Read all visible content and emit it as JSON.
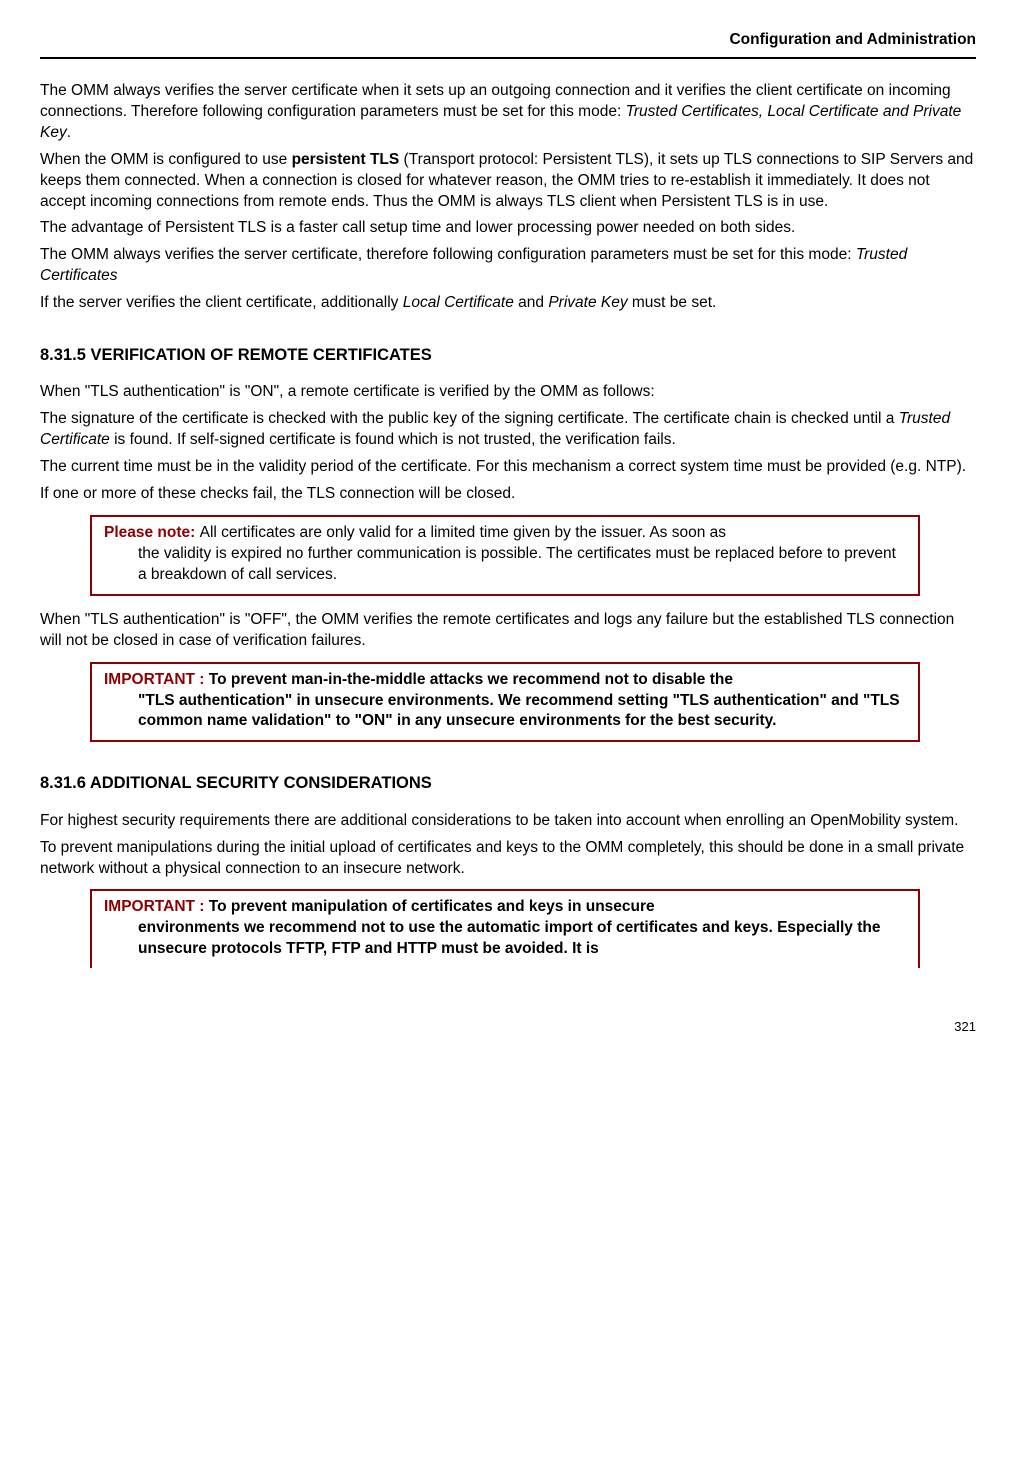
{
  "header": {
    "title": "Configuration and Administration"
  },
  "intro": {
    "p1a": "The OMM always verifies the server certificate when it sets up an outgoing connection and it verifies the client certificate on incoming connections. Therefore following configuration parameters must be set for this mode: ",
    "p1b_italic": "Trusted Certificates, Local Certificate and Private Key",
    "p1c": ".",
    "p2a": "When the OMM is configured to use ",
    "p2b_bold": "persistent TLS",
    "p2c": " (Transport protocol: Persistent TLS), it sets up TLS connections to SIP Servers and keeps them connected. When a connection is closed for whatever reason, the OMM tries to re-establish it immediately. It does not accept incoming connections from remote ends. Thus the OMM is always TLS client when Persistent TLS is in use.",
    "p3": "The advantage of Persistent TLS is a faster call setup time and lower processing power needed on both sides.",
    "p4a": "The OMM always verifies the server certificate, therefore following configuration parameters must be set for this mode: ",
    "p4b_italic": "Trusted Certificates",
    "p5a": "If the server verifies the client certificate, additionally ",
    "p5b_italic": "Local Certificate",
    "p5c": " and ",
    "p5d_italic": "Private Key",
    "p5e": " must be set."
  },
  "section_8315": {
    "heading": "8.31.5 VERIFICATION OF REMOTE CERTIFICATES",
    "p1": "When \"TLS authentication\" is \"ON\", a remote certificate is verified by the OMM as follows:",
    "p2a": "The signature of the certificate is checked with the public key of the signing certificate. The certificate chain is checked until a ",
    "p2b_italic": "Trusted Certificate",
    "p2c": " is found. If self-signed certificate is found which is not trusted, the verification fails.",
    "p3": "The current time must be in the validity period of the certificate. For this mechanism a correct system time must be provided (e.g. NTP).",
    "p4": "If one or more of these checks fail, the TLS connection will be closed.",
    "note1_label": "Please note: ",
    "note1_first": " All certificates are only valid for a limited time given by the issuer. As soon as",
    "note1_rest": "the validity is expired no further communication is possible. The certificates must be replaced before to prevent a breakdown of call services.",
    "p5": "When \"TLS authentication\" is \"OFF\", the OMM verifies the remote certificates and logs any failure but the established TLS connection will not be closed in case of verification failures.",
    "note2_label": "IMPORTANT : ",
    "note2_first": " To prevent man-in-the-middle attacks we recommend not to disable the",
    "note2_rest": "\"TLS authentication\" in unsecure environments. We recommend setting \"TLS authentication\" and \"TLS common name validation\" to \"ON\" in any unsecure environments for the best security."
  },
  "section_8316": {
    "heading": "8.31.6 ADDITIONAL SECURITY CONSIDERATIONS",
    "p1": "For highest security requirements there are additional considerations to be taken into account when enrolling an OpenMobility system.",
    "p2": "To prevent manipulations during the initial upload of certificates and keys to the OMM completely, this should be done in a small private network without a physical connection to an insecure network.",
    "note1_label": "IMPORTANT : ",
    "note1_first": " To prevent manipulation of certificates and keys in unsecure",
    "note1_rest": "environments we recommend not to use the automatic import of certificates and keys. Especially the unsecure protocols TFTP, FTP and HTTP must be avoided. It is"
  },
  "footer": {
    "page": "321"
  }
}
